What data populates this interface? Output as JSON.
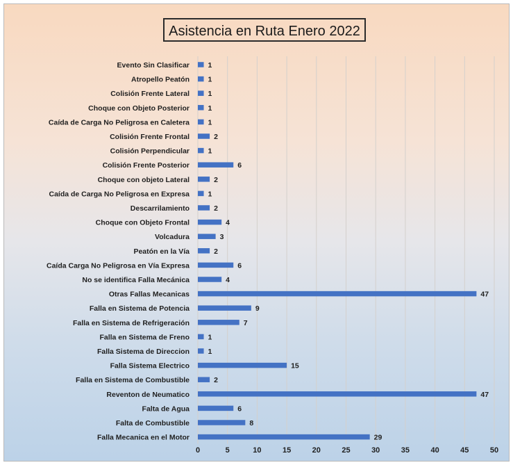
{
  "chart_data": {
    "type": "bar",
    "orientation": "horizontal",
    "title": "Asistencia en Ruta Enero 2022",
    "xlabel": "",
    "ylabel": "",
    "xlim": [
      0,
      50
    ],
    "x_ticks": [
      0,
      5,
      10,
      15,
      20,
      25,
      30,
      35,
      40,
      45,
      50
    ],
    "grid": "vertical",
    "legend": "none",
    "bar_color": "#4472c4",
    "categories": [
      "Evento Sin Clasificar",
      "Atropello Peatón",
      "Colisión Frente Lateral",
      "Choque con Objeto Posterior",
      "Caída de Carga No Peligrosa en Caletera",
      "Colisión Frente Frontal",
      "Colisión Perpendicular",
      "Colisión Frente Posterior",
      "Choque con objeto Lateral",
      "Caída de Carga No Peligrosa en Expresa",
      "Descarrilamiento",
      "Choque con Objeto Frontal",
      "Volcadura",
      "Peatón en la Vía",
      "Caída Carga No Peligrosa en Vía Expresa",
      "No se identifica Falla Mecánica",
      "Otras Fallas Mecanicas",
      "Falla en Sistema de Potencia",
      "Falla en Sistema de Refrigeración",
      "Falla en Sistema de Freno",
      "Falla Sistema de Direccion",
      "Falla Sistema Electrico",
      "Falla en Sistema de Combustible",
      "Reventon de Neumatico",
      "Falta de Agua",
      "Falta de Combustible",
      "Falla Mecanica en el Motor"
    ],
    "values": [
      1,
      1,
      1,
      1,
      1,
      2,
      1,
      6,
      2,
      1,
      2,
      4,
      3,
      2,
      6,
      4,
      47,
      9,
      7,
      1,
      1,
      15,
      2,
      47,
      6,
      8,
      29
    ]
  }
}
